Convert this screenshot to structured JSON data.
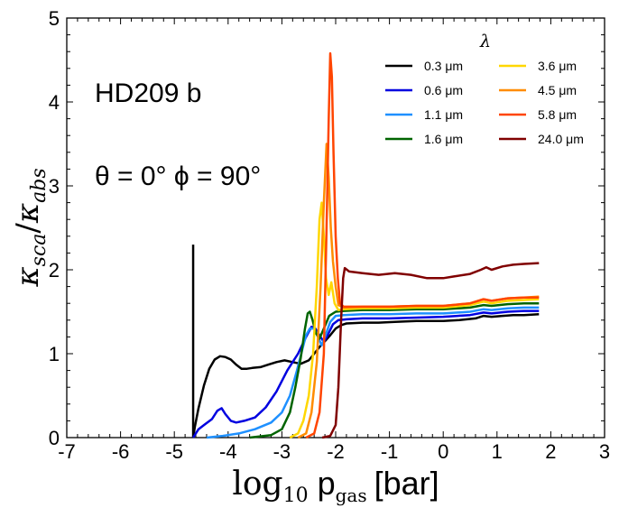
{
  "chart_data": {
    "type": "line",
    "xlabel_math": "log",
    "xlabel_sub": "10",
    "xlabel_p": "p",
    "xlabel_gas": "gas",
    "xlabel_unit": "[bar]",
    "ylabel_k1": "κ",
    "ylabel_s1": "sca",
    "ylabel_slash": "/",
    "ylabel_k2": "κ",
    "ylabel_s2": "abs",
    "xlim": [
      -7,
      3
    ],
    "ylim": [
      0,
      5
    ],
    "xticks": [
      "-7",
      "-6",
      "-5",
      "-4",
      "-3",
      "-2",
      "-1",
      "0",
      "1",
      "2",
      "3"
    ],
    "yticks": [
      "0",
      "1",
      "2",
      "3",
      "4",
      "5"
    ],
    "annotations": {
      "planet": "HD209 b",
      "angles": "θ = 0°  ϕ = 90°"
    },
    "vertical_marker": {
      "x": -4.65,
      "y_top": 2.3
    },
    "legend_title": "λ",
    "series": [
      {
        "name": "0.3 μm",
        "color": "#000000",
        "points": [
          [
            -4.65,
            0.0
          ],
          [
            -4.62,
            0.12
          ],
          [
            -4.55,
            0.35
          ],
          [
            -4.45,
            0.62
          ],
          [
            -4.35,
            0.82
          ],
          [
            -4.25,
            0.93
          ],
          [
            -4.15,
            0.97
          ],
          [
            -4.05,
            0.96
          ],
          [
            -3.95,
            0.93
          ],
          [
            -3.85,
            0.87
          ],
          [
            -3.75,
            0.82
          ],
          [
            -3.65,
            0.82
          ],
          [
            -3.55,
            0.83
          ],
          [
            -3.4,
            0.84
          ],
          [
            -3.25,
            0.87
          ],
          [
            -3.1,
            0.9
          ],
          [
            -2.95,
            0.92
          ],
          [
            -2.8,
            0.9
          ],
          [
            -2.65,
            0.88
          ],
          [
            -2.5,
            0.92
          ],
          [
            -2.4,
            1.0
          ],
          [
            -2.3,
            1.08
          ],
          [
            -2.2,
            1.15
          ],
          [
            -2.1,
            1.22
          ],
          [
            -2.0,
            1.3
          ],
          [
            -1.9,
            1.34
          ],
          [
            -1.8,
            1.36
          ],
          [
            -1.5,
            1.37
          ],
          [
            -1.2,
            1.37
          ],
          [
            -0.9,
            1.38
          ],
          [
            -0.5,
            1.39
          ],
          [
            0,
            1.39
          ],
          [
            0.3,
            1.4
          ],
          [
            0.6,
            1.42
          ],
          [
            0.75,
            1.45
          ],
          [
            0.9,
            1.44
          ],
          [
            1.1,
            1.45
          ],
          [
            1.3,
            1.46
          ],
          [
            1.5,
            1.46
          ],
          [
            1.78,
            1.47
          ]
        ]
      },
      {
        "name": "0.6 μm",
        "color": "#0000e0",
        "points": [
          [
            -4.65,
            0.0
          ],
          [
            -4.55,
            0.1
          ],
          [
            -4.45,
            0.15
          ],
          [
            -4.3,
            0.22
          ],
          [
            -4.2,
            0.32
          ],
          [
            -4.12,
            0.35
          ],
          [
            -4.05,
            0.28
          ],
          [
            -3.95,
            0.2
          ],
          [
            -3.85,
            0.18
          ],
          [
            -3.7,
            0.2
          ],
          [
            -3.5,
            0.24
          ],
          [
            -3.3,
            0.36
          ],
          [
            -3.1,
            0.55
          ],
          [
            -2.9,
            0.8
          ],
          [
            -2.7,
            1.0
          ],
          [
            -2.55,
            1.2
          ],
          [
            -2.45,
            1.32
          ],
          [
            -2.38,
            1.3
          ],
          [
            -2.3,
            1.22
          ],
          [
            -2.22,
            1.14
          ],
          [
            -2.15,
            1.22
          ],
          [
            -2.05,
            1.35
          ],
          [
            -1.95,
            1.4
          ],
          [
            -1.8,
            1.41
          ],
          [
            -1.5,
            1.42
          ],
          [
            -1.0,
            1.42
          ],
          [
            -0.5,
            1.43
          ],
          [
            0,
            1.44
          ],
          [
            0.5,
            1.46
          ],
          [
            0.75,
            1.49
          ],
          [
            0.9,
            1.48
          ],
          [
            1.2,
            1.5
          ],
          [
            1.5,
            1.51
          ],
          [
            1.78,
            1.51
          ]
        ]
      },
      {
        "name": "1.1 μm",
        "color": "#1e90ff",
        "points": [
          [
            -4.4,
            0.0
          ],
          [
            -4.1,
            0.02
          ],
          [
            -3.8,
            0.05
          ],
          [
            -3.5,
            0.1
          ],
          [
            -3.2,
            0.18
          ],
          [
            -3.0,
            0.3
          ],
          [
            -2.85,
            0.5
          ],
          [
            -2.72,
            0.8
          ],
          [
            -2.62,
            1.05
          ],
          [
            -2.55,
            1.22
          ],
          [
            -2.48,
            1.3
          ],
          [
            -2.4,
            1.3
          ],
          [
            -2.33,
            1.2
          ],
          [
            -2.26,
            1.1
          ],
          [
            -2.2,
            1.2
          ],
          [
            -2.1,
            1.38
          ],
          [
            -2.0,
            1.45
          ],
          [
            -1.85,
            1.46
          ],
          [
            -1.5,
            1.47
          ],
          [
            -1.0,
            1.47
          ],
          [
            -0.5,
            1.48
          ],
          [
            0,
            1.48
          ],
          [
            0.5,
            1.5
          ],
          [
            0.75,
            1.53
          ],
          [
            0.9,
            1.52
          ],
          [
            1.2,
            1.54
          ],
          [
            1.5,
            1.55
          ],
          [
            1.78,
            1.55
          ]
        ]
      },
      {
        "name": "1.6 μm",
        "color": "#006400",
        "points": [
          [
            -3.6,
            0.0
          ],
          [
            -3.2,
            0.03
          ],
          [
            -3.0,
            0.1
          ],
          [
            -2.85,
            0.3
          ],
          [
            -2.75,
            0.6
          ],
          [
            -2.65,
            0.95
          ],
          [
            -2.57,
            1.3
          ],
          [
            -2.52,
            1.48
          ],
          [
            -2.48,
            1.5
          ],
          [
            -2.43,
            1.4
          ],
          [
            -2.37,
            1.25
          ],
          [
            -2.3,
            1.18
          ],
          [
            -2.22,
            1.3
          ],
          [
            -2.12,
            1.45
          ],
          [
            -2.0,
            1.5
          ],
          [
            -1.85,
            1.51
          ],
          [
            -1.5,
            1.52
          ],
          [
            -1.0,
            1.52
          ],
          [
            -0.5,
            1.53
          ],
          [
            0,
            1.53
          ],
          [
            0.5,
            1.55
          ],
          [
            0.75,
            1.58
          ],
          [
            0.9,
            1.57
          ],
          [
            1.2,
            1.59
          ],
          [
            1.5,
            1.6
          ],
          [
            1.78,
            1.6
          ]
        ]
      },
      {
        "name": "3.6 μm",
        "color": "#ffd700",
        "points": [
          [
            -2.85,
            0.0
          ],
          [
            -2.7,
            0.05
          ],
          [
            -2.6,
            0.2
          ],
          [
            -2.5,
            0.5
          ],
          [
            -2.42,
            1.0
          ],
          [
            -2.35,
            1.8
          ],
          [
            -2.3,
            2.6
          ],
          [
            -2.26,
            2.8
          ],
          [
            -2.22,
            2.4
          ],
          [
            -2.18,
            1.9
          ],
          [
            -2.13,
            1.7
          ],
          [
            -2.08,
            1.85
          ],
          [
            -2.02,
            1.6
          ],
          [
            -1.95,
            1.52
          ],
          [
            -1.85,
            1.53
          ],
          [
            -1.5,
            1.54
          ],
          [
            -1.0,
            1.54
          ],
          [
            -0.5,
            1.55
          ],
          [
            0,
            1.55
          ],
          [
            0.5,
            1.58
          ],
          [
            0.75,
            1.62
          ],
          [
            0.9,
            1.6
          ],
          [
            1.2,
            1.63
          ],
          [
            1.5,
            1.64
          ],
          [
            1.78,
            1.65
          ]
        ]
      },
      {
        "name": "4.5 μm",
        "color": "#ff8c00",
        "points": [
          [
            -2.7,
            0.0
          ],
          [
            -2.55,
            0.05
          ],
          [
            -2.45,
            0.3
          ],
          [
            -2.35,
            0.9
          ],
          [
            -2.28,
            1.8
          ],
          [
            -2.22,
            2.8
          ],
          [
            -2.17,
            3.5
          ],
          [
            -2.13,
            3.1
          ],
          [
            -2.09,
            2.5
          ],
          [
            -2.05,
            2.1
          ],
          [
            -2.0,
            1.8
          ],
          [
            -1.95,
            1.58
          ],
          [
            -1.85,
            1.55
          ],
          [
            -1.5,
            1.56
          ],
          [
            -1.0,
            1.56
          ],
          [
            -0.5,
            1.57
          ],
          [
            0,
            1.57
          ],
          [
            0.5,
            1.6
          ],
          [
            0.75,
            1.65
          ],
          [
            0.9,
            1.63
          ],
          [
            1.2,
            1.66
          ],
          [
            1.5,
            1.67
          ],
          [
            1.78,
            1.68
          ]
        ]
      },
      {
        "name": "5.8 μm",
        "color": "#ff4500",
        "points": [
          [
            -2.55,
            0.0
          ],
          [
            -2.4,
            0.05
          ],
          [
            -2.3,
            0.3
          ],
          [
            -2.22,
            1.0
          ],
          [
            -2.17,
            2.5
          ],
          [
            -2.13,
            3.8
          ],
          [
            -2.1,
            4.58
          ],
          [
            -2.07,
            4.3
          ],
          [
            -2.04,
            3.4
          ],
          [
            -2.0,
            2.4
          ],
          [
            -1.96,
            1.9
          ],
          [
            -1.92,
            1.6
          ],
          [
            -1.85,
            1.56
          ],
          [
            -1.5,
            1.56
          ],
          [
            -1.0,
            1.56
          ],
          [
            -0.5,
            1.57
          ],
          [
            0,
            1.57
          ],
          [
            0.5,
            1.6
          ],
          [
            0.75,
            1.65
          ],
          [
            0.9,
            1.63
          ],
          [
            1.2,
            1.66
          ],
          [
            1.5,
            1.67
          ],
          [
            1.78,
            1.67
          ]
        ]
      },
      {
        "name": "24.0 μm",
        "color": "#800000",
        "points": [
          [
            -2.25,
            0.0
          ],
          [
            -2.1,
            0.02
          ],
          [
            -2.0,
            0.15
          ],
          [
            -1.95,
            0.6
          ],
          [
            -1.9,
            1.4
          ],
          [
            -1.86,
            1.9
          ],
          [
            -1.83,
            2.02
          ],
          [
            -1.75,
            1.98
          ],
          [
            -1.5,
            1.96
          ],
          [
            -1.2,
            1.94
          ],
          [
            -0.9,
            1.96
          ],
          [
            -0.6,
            1.94
          ],
          [
            -0.3,
            1.9
          ],
          [
            0,
            1.9
          ],
          [
            0.2,
            1.92
          ],
          [
            0.5,
            1.95
          ],
          [
            0.7,
            2.0
          ],
          [
            0.8,
            2.03
          ],
          [
            0.9,
            2.0
          ],
          [
            1.1,
            2.04
          ],
          [
            1.3,
            2.06
          ],
          [
            1.5,
            2.07
          ],
          [
            1.78,
            2.08
          ]
        ]
      }
    ]
  }
}
